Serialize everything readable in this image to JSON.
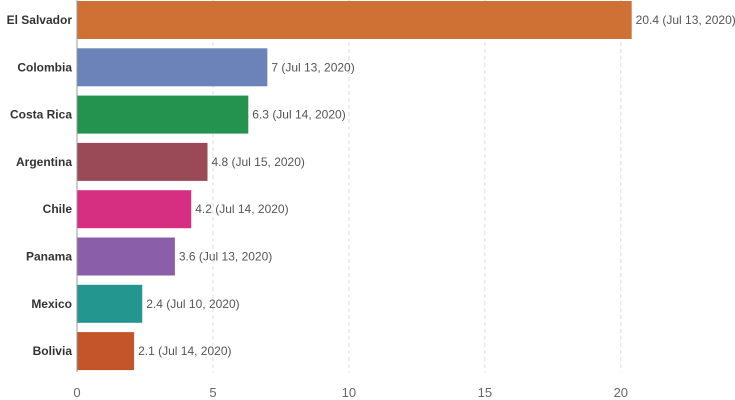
{
  "chart_data": {
    "type": "bar",
    "orientation": "horizontal",
    "categories": [
      "El Salvador",
      "Colombia",
      "Costa Rica",
      "Argentina",
      "Chile",
      "Panama",
      "Mexico",
      "Bolivia"
    ],
    "values": [
      20.4,
      7,
      6.3,
      4.8,
      4.2,
      3.6,
      2.4,
      2.1
    ],
    "data_labels": [
      "20.4 (Jul 13, 2020)",
      "7 (Jul 13, 2020)",
      "6.3 (Jul 14, 2020)",
      "4.8 (Jul 15, 2020)",
      "4.2 (Jul 14, 2020)",
      "3.6 (Jul 13, 2020)",
      "2.4 (Jul 10, 2020)",
      "2.1 (Jul 14, 2020)"
    ],
    "colors": [
      "#cf7134",
      "#6b83b8",
      "#24934f",
      "#9a4a56",
      "#d62f82",
      "#8a5ea9",
      "#22968f",
      "#c4542a"
    ],
    "x_ticks": [
      "0",
      "5",
      "10",
      "15",
      "20"
    ],
    "xlim": [
      0,
      24.2
    ],
    "grid": true
  }
}
